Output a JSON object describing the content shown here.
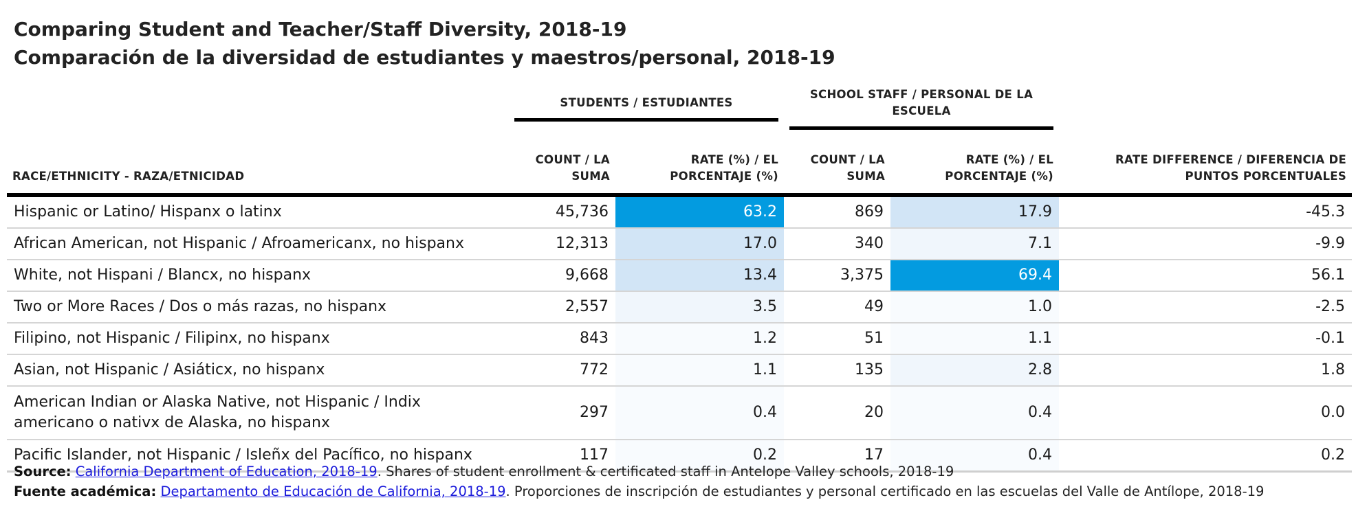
{
  "title": {
    "line1": "Comparing Student and Teacher/Staff Diversity, 2018-19",
    "line2": "Comparación de la diversidad de estudiantes y maestros/personal, 2018-19"
  },
  "header": {
    "group_students": "STUDENTS / ESTUDIANTES",
    "group_staff": "SCHOOL STAFF / PERSONAL DE LA ESCUELA",
    "col_race": "RACE/ETHNICITY - RAZA/ETNICIDAD",
    "col_student_count": "COUNT / LA SUMA",
    "col_student_rate": "RATE (%) / EL PORCENTAJE (%)",
    "col_staff_count": "COUNT / LA SUMA",
    "col_staff_rate": "RATE (%) / EL PORCENTAJE (%)",
    "col_diff": "RATE DIFFERENCE / DIFERENCIA DE PUNTOS PORCENTUALES"
  },
  "rows": [
    {
      "race": "Hispanic or Latino/ Hispanx o latinx",
      "student_count": "45,736",
      "student_rate": "63.2",
      "staff_count": "869",
      "staff_rate": "17.9",
      "diff": "-45.3",
      "student_rate_value": 63.2,
      "staff_rate_value": 17.9
    },
    {
      "race": "African American, not Hispanic / Afroamericanx, no hispanx",
      "student_count": "12,313",
      "student_rate": "17.0",
      "staff_count": "340",
      "staff_rate": "7.1",
      "diff": "-9.9",
      "student_rate_value": 17.0,
      "staff_rate_value": 7.1
    },
    {
      "race": "White, not Hispani / Blancx, no hispanx",
      "student_count": "9,668",
      "student_rate": "13.4",
      "staff_count": "3,375",
      "staff_rate": "69.4",
      "diff": "56.1",
      "student_rate_value": 13.4,
      "staff_rate_value": 69.4
    },
    {
      "race": "Two or More Races / Dos o más razas, no hispanx",
      "student_count": "2,557",
      "student_rate": "3.5",
      "staff_count": "49",
      "staff_rate": "1.0",
      "diff": "-2.5",
      "student_rate_value": 3.5,
      "staff_rate_value": 1.0
    },
    {
      "race": "Filipino, not Hispanic / Filipinx, no hispanx",
      "student_count": "843",
      "student_rate": "1.2",
      "staff_count": "51",
      "staff_rate": "1.1",
      "diff": "-0.1",
      "student_rate_value": 1.2,
      "staff_rate_value": 1.1
    },
    {
      "race": "Asian, not Hispanic / Asiáticx, no hispanx",
      "student_count": "772",
      "student_rate": "1.1",
      "staff_count": "135",
      "staff_rate": "2.8",
      "diff": "1.8",
      "student_rate_value": 1.1,
      "staff_rate_value": 2.8
    },
    {
      "race": "American Indian or Alaska Native, not Hispanic / Indix americano o nativx de Alaska, no hispanx",
      "student_count": "297",
      "student_rate": "0.4",
      "staff_count": "20",
      "staff_rate": "0.4",
      "diff": "0.0",
      "student_rate_value": 0.4,
      "staff_rate_value": 0.4
    },
    {
      "race": "Pacific Islander, not Hispanic / Isleñx del Pacífico, no hispanx",
      "student_count": "117",
      "student_rate": "0.2",
      "staff_count": "17",
      "staff_rate": "0.4",
      "diff": "0.2",
      "student_rate_value": 0.2,
      "staff_rate_value": 0.4
    }
  ],
  "colors": {
    "high": "#039be0",
    "mid": "#d2e5f6",
    "low": "#f0f6fc",
    "faint": "#f8fbfe"
  },
  "footer": {
    "source_label": "Source:",
    "source_link": "California Department of Education, 2018-19",
    "source_text": ". Shares of student enrollment & certificated staff in Antelope Valley schools, 2018-19",
    "fuente_label": "Fuente académica:",
    "fuente_link": "Departamento de Educación de California, 2018-19",
    "fuente_text": ". Proporciones de inscripción de estudiantes y personal certificado en las escuelas del Valle de Antílope, 2018-19"
  }
}
